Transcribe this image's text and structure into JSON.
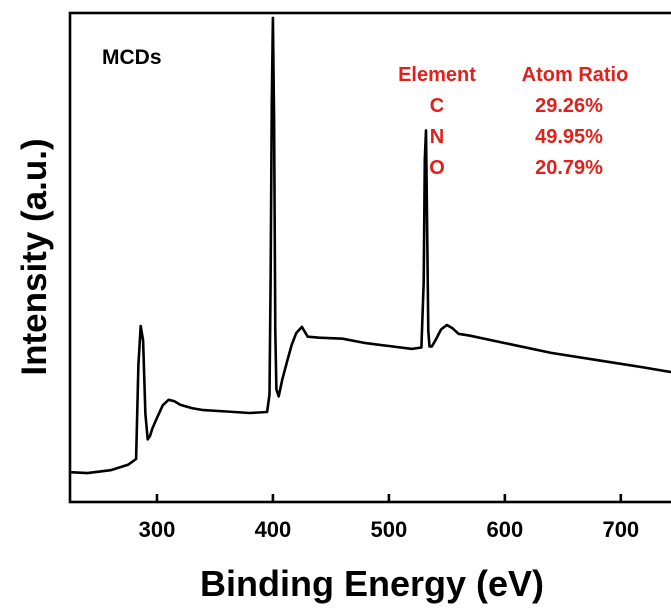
{
  "chart_data": {
    "type": "line",
    "title": "",
    "panel_label": "MCDs",
    "xlabel": "Binding Energy (eV)",
    "ylabel": "Intensity (a.u.)",
    "xlim": [
      225,
      745
    ],
    "ylim": [
      0,
      100
    ],
    "x_ticks": [
      300,
      400,
      500,
      600,
      700
    ],
    "y_ticks_shown": false,
    "grid": false,
    "legend": "none",
    "line_color": "#000000",
    "annotation_color": "#e0201b",
    "table": {
      "headers": [
        "Element",
        "Atom Ratio"
      ],
      "rows": [
        {
          "element": "C",
          "ratio": "29.26%"
        },
        {
          "element": "N",
          "ratio": "49.95%"
        },
        {
          "element": "O",
          "ratio": "20.79%"
        }
      ]
    },
    "series": [
      {
        "x": [
          225,
          240,
          260,
          275,
          282,
          284,
          286,
          288,
          290,
          292,
          294,
          296,
          300,
          305,
          310,
          315,
          320,
          330,
          340,
          360,
          380,
          395,
          397,
          398,
          399,
          400,
          401,
          402,
          403,
          405,
          408,
          412,
          416,
          420,
          425,
          430,
          440,
          460,
          480,
          500,
          520,
          528,
          530,
          531,
          532,
          533,
          534,
          535,
          537,
          540,
          545,
          550,
          555,
          560,
          570,
          600,
          640,
          680,
          720,
          745
        ],
        "y": [
          6.1,
          5.9,
          6.5,
          7.6,
          8.8,
          28,
          36,
          33,
          18,
          12.8,
          13.5,
          15,
          17.2,
          19.8,
          20.9,
          20.6,
          19.9,
          19.2,
          18.8,
          18.5,
          18.2,
          18.4,
          22,
          45,
          82,
          99,
          78,
          35,
          23,
          21.6,
          25,
          28.5,
          32,
          34.5,
          35.8,
          33.8,
          33.6,
          33.4,
          32.5,
          31.9,
          31.3,
          31.6,
          45,
          70,
          76,
          55,
          35,
          31.8,
          31.8,
          33,
          35.3,
          36.2,
          35.5,
          34.4,
          34,
          32.5,
          30.5,
          29,
          27.5,
          26.5
        ]
      }
    ]
  }
}
